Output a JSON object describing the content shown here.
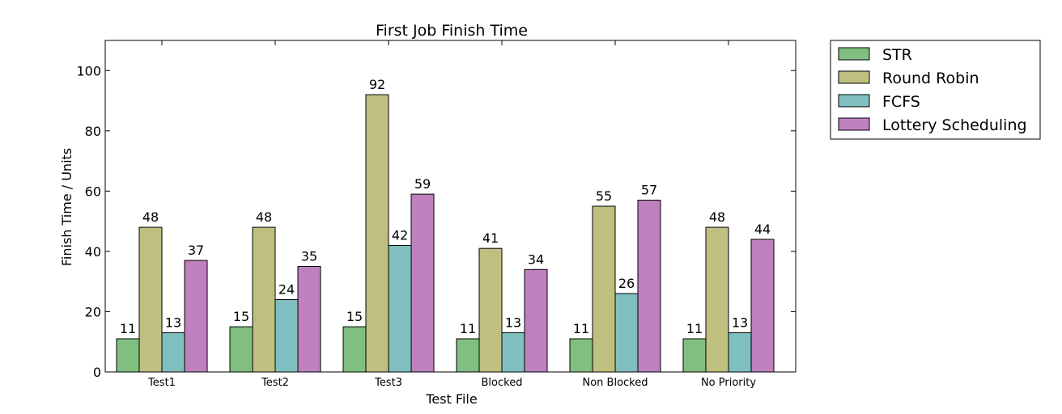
{
  "chart_data": {
    "type": "bar",
    "title": "First Job Finish Time",
    "xlabel": "Test File",
    "ylabel": "Finish Time / Units",
    "ylim": [
      0,
      110
    ],
    "yticks": [
      0,
      20,
      40,
      60,
      80,
      100
    ],
    "categories": [
      "Test1",
      "Test2",
      "Test3",
      "Blocked",
      "Non Blocked",
      "No Priority"
    ],
    "series": [
      {
        "name": "STR",
        "color": "#80bf80",
        "values": [
          11,
          15,
          15,
          11,
          11,
          11
        ]
      },
      {
        "name": "Round Robin",
        "color": "#bfbf80",
        "values": [
          48,
          48,
          92,
          41,
          55,
          48
        ]
      },
      {
        "name": "FCFS",
        "color": "#80bfbf",
        "values": [
          13,
          24,
          42,
          13,
          26,
          13
        ]
      },
      {
        "name": "Lottery Scheduling",
        "color": "#bf80bf",
        "values": [
          37,
          35,
          59,
          34,
          57,
          44
        ]
      }
    ],
    "data_labels": [
      [
        "11",
        "15",
        "15",
        "11",
        "11",
        "11"
      ],
      [
        "48",
        "48",
        "92",
        "41",
        "55",
        "48"
      ],
      [
        "13",
        "24",
        "42",
        "13",
        "26",
        "13"
      ],
      [
        "37",
        "35",
        "59",
        "34",
        "57",
        "44"
      ]
    ],
    "legend_position": "outside-top-right",
    "grid": false
  }
}
